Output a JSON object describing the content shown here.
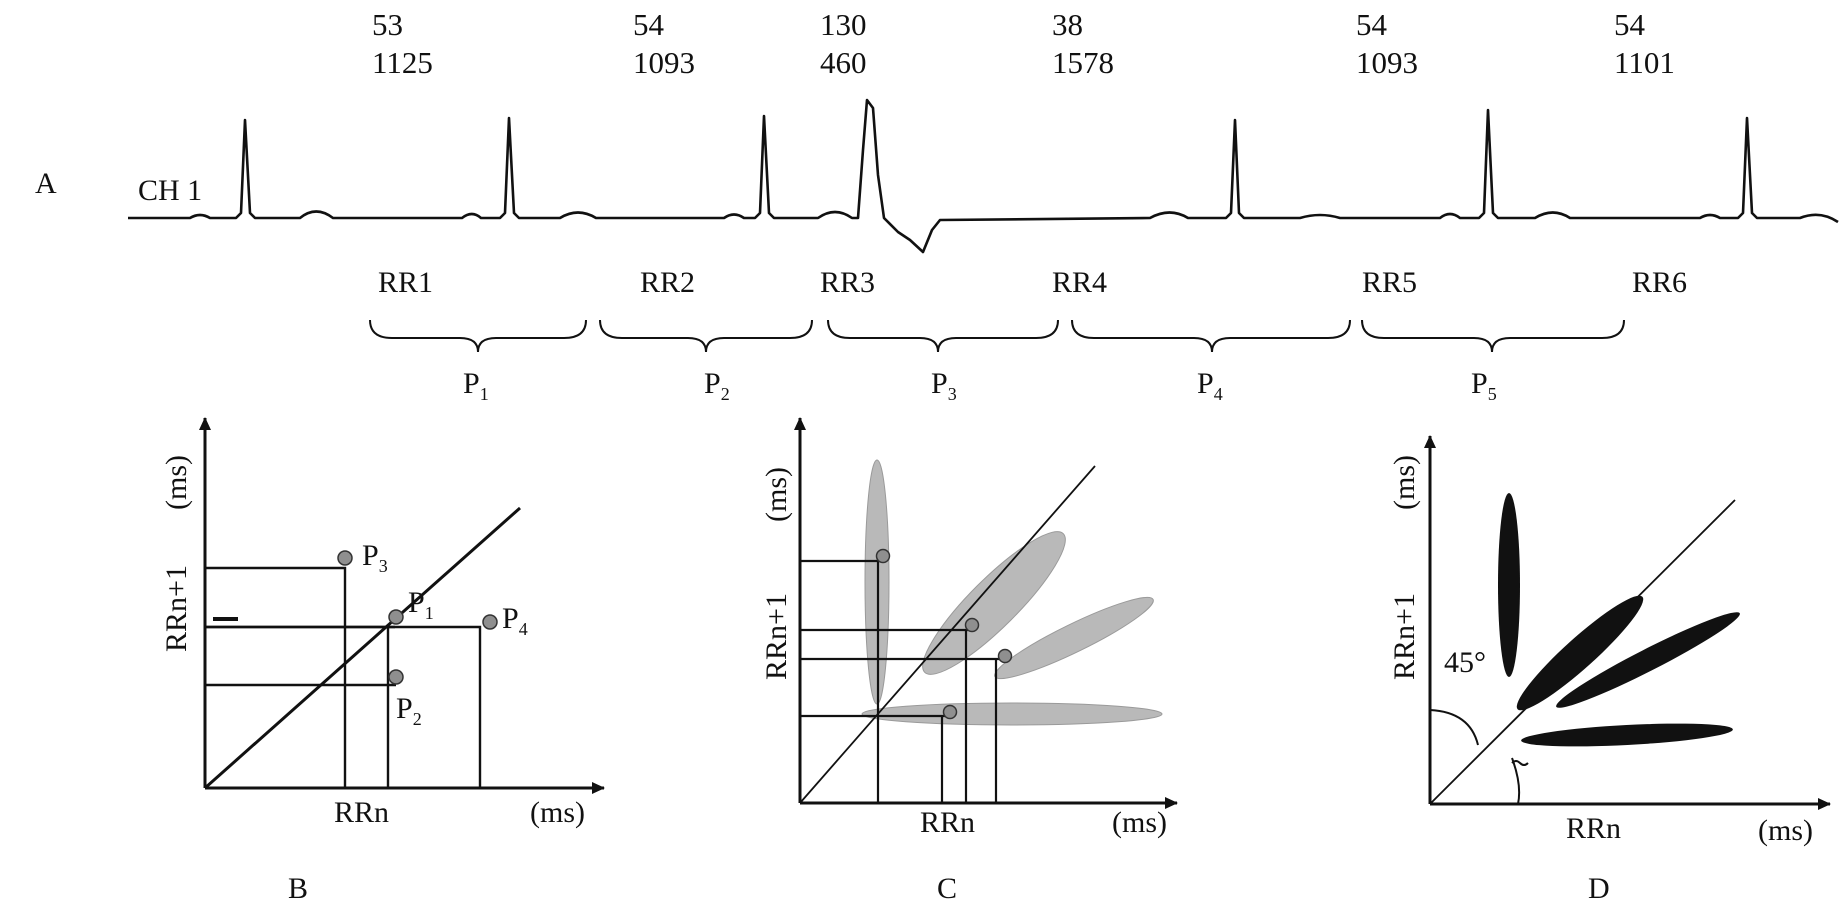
{
  "panel_a": {
    "letter": "A",
    "channel": "CH 1",
    "beats": [
      {
        "top": "53",
        "bottom": "1125"
      },
      {
        "top": "54",
        "bottom": "1093"
      },
      {
        "top": "130",
        "bottom": "460"
      },
      {
        "top": "38",
        "bottom": "1578"
      },
      {
        "top": "54",
        "bottom": "1093"
      },
      {
        "top": "54",
        "bottom": "1101"
      }
    ],
    "rr_labels": [
      "RR1",
      "RR2",
      "RR3",
      "RR4",
      "RR5",
      "RR6"
    ],
    "pairs": [
      {
        "base": "P",
        "sub": "1"
      },
      {
        "base": "P",
        "sub": "2"
      },
      {
        "base": "P",
        "sub": "3"
      },
      {
        "base": "P",
        "sub": "4"
      },
      {
        "base": "P",
        "sub": "5"
      }
    ]
  },
  "panel_b": {
    "letter": "B",
    "ylabel": "RRn+1",
    "yunit": "(ms)",
    "xlabel": "RRn",
    "xunit": "(ms)",
    "points": [
      {
        "base": "P",
        "sub": "3"
      },
      {
        "base": "P",
        "sub": "1"
      },
      {
        "base": "P",
        "sub": "4"
      },
      {
        "base": "P",
        "sub": "2"
      }
    ]
  },
  "panel_c": {
    "letter": "C",
    "ylabel": "RRn+1",
    "yunit": "(ms)",
    "xlabel": "RRn",
    "xunit": "(ms)"
  },
  "panel_d": {
    "letter": "D",
    "ylabel": "RRn+1",
    "yunit": "(ms)",
    "xlabel": "RRn",
    "xunit": "(ms)",
    "angle": "45°"
  },
  "colors": {
    "ink": "#111111",
    "cloud": "#b9b9b9",
    "cloud_edge": "#9a9a9a",
    "dot": "#8f8f8f"
  }
}
